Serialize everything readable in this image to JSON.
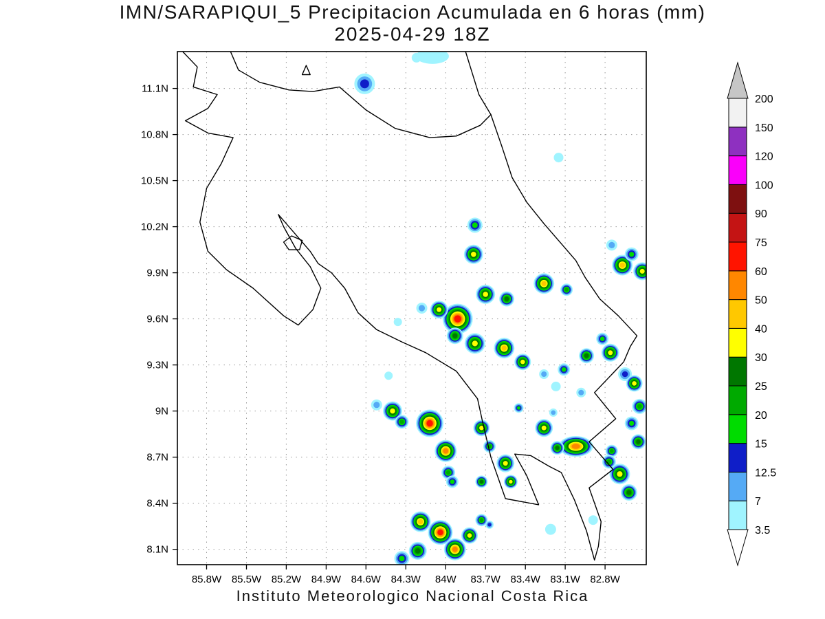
{
  "title": {
    "line1": "IMN/SARAPIQUI_5 Precipitacion Acumulada en 6 horas (mm)",
    "line2": "2025-04-29 18Z"
  },
  "footer": "Instituto Meteorologico Nacional Costa Rica",
  "chart_data": {
    "type": "heatmap",
    "title": "IMN/SARAPIQUI_5 Precipitacion Acumulada en 6 horas (mm)",
    "valid_time": "2025-04-29 18Z",
    "units": "mm",
    "extent": {
      "lon_west": 86.02,
      "lon_east": 82.49,
      "lat_north": 11.34,
      "lat_south": 8.0
    },
    "grid": {
      "lat": [
        {
          "value": 11.1,
          "label": "11.1N"
        },
        {
          "value": 10.8,
          "label": "10.8N"
        },
        {
          "value": 10.5,
          "label": "10.5N"
        },
        {
          "value": 10.2,
          "label": "10.2N"
        },
        {
          "value": 9.9,
          "label": "9.9N"
        },
        {
          "value": 9.6,
          "label": "9.6N"
        },
        {
          "value": 9.3,
          "label": "9.3N"
        },
        {
          "value": 9.0,
          "label": "9N"
        },
        {
          "value": 8.7,
          "label": "8.7N"
        },
        {
          "value": 8.4,
          "label": "8.4N"
        },
        {
          "value": 8.1,
          "label": "8.1N"
        }
      ],
      "lon": [
        {
          "value": 85.8,
          "label": "85.8W"
        },
        {
          "value": 85.5,
          "label": "85.5W"
        },
        {
          "value": 85.2,
          "label": "85.2W"
        },
        {
          "value": 84.9,
          "label": "84.9W"
        },
        {
          "value": 84.6,
          "label": "84.6W"
        },
        {
          "value": 84.3,
          "label": "84.3W"
        },
        {
          "value": 84.0,
          "label": "84W"
        },
        {
          "value": 83.7,
          "label": "83.7W"
        },
        {
          "value": 83.4,
          "label": "83.4W"
        },
        {
          "value": 83.1,
          "label": "83.1W"
        },
        {
          "value": 82.8,
          "label": "82.8W"
        }
      ]
    },
    "colorbar": {
      "levels": [
        3.5,
        7,
        12.5,
        15,
        20,
        25,
        30,
        40,
        50,
        60,
        75,
        90,
        100,
        120,
        150,
        200
      ],
      "colors": [
        "#A0F4FF",
        "#55AAF5",
        "#0F1EC8",
        "#00DC00",
        "#00AA00",
        "#007700",
        "#FFFF00",
        "#FFC800",
        "#FF8700",
        "#FF1400",
        "#C41414",
        "#7E1010",
        "#FA00FA",
        "#8E30C0",
        "#F2F2F2"
      ],
      "under_color": "#FFFFFF",
      "over_color": "#C6C6C6"
    },
    "coastlines": [
      [
        [
          85.98,
          11.34
        ],
        [
          85.87,
          11.24
        ],
        [
          85.9,
          11.11
        ],
        [
          85.72,
          11.06
        ],
        [
          85.79,
          10.97
        ],
        [
          85.96,
          10.89
        ],
        [
          85.79,
          10.81
        ],
        [
          85.6,
          10.78
        ],
        [
          85.69,
          10.61
        ],
        [
          85.8,
          10.45
        ],
        [
          85.85,
          10.23
        ],
        [
          85.79,
          10.04
        ],
        [
          85.65,
          9.92
        ],
        [
          85.45,
          9.8
        ],
        [
          85.22,
          9.62
        ],
        [
          85.11,
          9.56
        ],
        [
          85.0,
          9.66
        ],
        [
          84.94,
          9.8
        ],
        [
          85.02,
          9.94
        ],
        [
          85.13,
          10.06
        ],
        [
          85.22,
          10.2
        ],
        [
          85.26,
          10.28
        ],
        [
          85.14,
          10.16
        ],
        [
          85.02,
          10.04
        ],
        [
          84.96,
          9.96
        ],
        [
          84.86,
          9.9
        ],
        [
          84.76,
          9.8
        ],
        [
          84.66,
          9.64
        ],
        [
          84.52,
          9.53
        ],
        [
          84.33,
          9.45
        ],
        [
          84.15,
          9.38
        ],
        [
          83.92,
          9.26
        ],
        [
          83.76,
          9.08
        ],
        [
          83.72,
          8.92
        ],
        [
          83.66,
          8.7
        ],
        [
          83.55,
          8.43
        ],
        [
          83.3,
          8.39
        ],
        [
          83.39,
          8.58
        ],
        [
          83.48,
          8.72
        ],
        [
          83.36,
          8.71
        ],
        [
          83.22,
          8.64
        ],
        [
          83.13,
          8.6
        ],
        [
          83.03,
          8.42
        ],
        [
          82.94,
          8.22
        ],
        [
          82.88,
          8.03
        ],
        [
          82.85,
          8.12
        ],
        [
          82.83,
          8.28
        ],
        [
          82.92,
          8.5
        ],
        [
          82.74,
          8.62
        ],
        [
          82.92,
          8.8
        ],
        [
          82.72,
          8.95
        ],
        [
          82.88,
          9.12
        ],
        [
          82.66,
          9.32
        ],
        [
          82.61,
          9.42
        ],
        [
          82.56,
          9.49
        ],
        [
          82.7,
          9.62
        ],
        [
          82.84,
          9.73
        ],
        [
          82.95,
          9.87
        ],
        [
          83.02,
          9.98
        ],
        [
          83.12,
          10.08
        ],
        [
          83.26,
          10.22
        ],
        [
          83.39,
          10.36
        ],
        [
          83.5,
          10.52
        ],
        [
          83.58,
          10.73
        ],
        [
          83.66,
          10.93
        ],
        [
          83.75,
          11.06
        ],
        [
          83.8,
          11.2
        ],
        [
          83.85,
          11.34
        ]
      ],
      [
        [
          85.62,
          11.34
        ],
        [
          85.56,
          11.22
        ],
        [
          85.4,
          11.14
        ],
        [
          85.18,
          11.09
        ],
        [
          85.0,
          11.08
        ],
        [
          84.8,
          11.11
        ],
        [
          84.6,
          10.96
        ],
        [
          84.38,
          10.84
        ],
        [
          84.12,
          10.78
        ],
        [
          83.92,
          10.79
        ],
        [
          83.74,
          10.86
        ],
        [
          83.66,
          10.93
        ]
      ],
      [
        [
          85.08,
          11.19
        ],
        [
          85.02,
          11.19
        ],
        [
          85.05,
          11.25
        ],
        [
          85.08,
          11.19
        ]
      ],
      [
        [
          85.22,
          10.1
        ],
        [
          85.16,
          10.14
        ],
        [
          85.08,
          10.11
        ],
        [
          85.1,
          10.05
        ],
        [
          85.18,
          10.05
        ],
        [
          85.22,
          10.1
        ]
      ]
    ],
    "cells": [
      {
        "lon": 84.61,
        "lat": 11.13,
        "r": 15,
        "max": 13
      },
      {
        "lon": 84.1,
        "lat": 11.31,
        "r": 16,
        "max": 5,
        "sx": 1.5,
        "sy": 0.7
      },
      {
        "lon": 84.22,
        "lat": 11.3,
        "r": 7,
        "max": 5
      },
      {
        "lon": 83.15,
        "lat": 10.65,
        "r": 7,
        "max": 5
      },
      {
        "lon": 83.78,
        "lat": 10.21,
        "r": 11,
        "max": 18
      },
      {
        "lon": 82.67,
        "lat": 9.95,
        "r": 15,
        "max": 45
      },
      {
        "lon": 82.52,
        "lat": 9.91,
        "r": 13,
        "max": 35
      },
      {
        "lon": 82.75,
        "lat": 10.08,
        "r": 8,
        "max": 8
      },
      {
        "lon": 82.6,
        "lat": 10.02,
        "r": 10,
        "max": 18
      },
      {
        "lon": 83.79,
        "lat": 10.02,
        "r": 14,
        "max": 35
      },
      {
        "lon": 83.7,
        "lat": 9.76,
        "r": 14,
        "max": 35
      },
      {
        "lon": 83.54,
        "lat": 9.73,
        "r": 11,
        "max": 28
      },
      {
        "lon": 83.26,
        "lat": 9.83,
        "r": 15,
        "max": 45
      },
      {
        "lon": 83.09,
        "lat": 9.79,
        "r": 9,
        "max": 22
      },
      {
        "lon": 83.91,
        "lat": 9.6,
        "r": 22,
        "max": 65
      },
      {
        "lon": 84.05,
        "lat": 9.66,
        "r": 13,
        "max": 35
      },
      {
        "lon": 84.18,
        "lat": 9.67,
        "r": 8,
        "max": 10
      },
      {
        "lon": 83.93,
        "lat": 9.49,
        "r": 12,
        "max": 28
      },
      {
        "lon": 83.78,
        "lat": 9.44,
        "r": 15,
        "max": 35
      },
      {
        "lon": 83.56,
        "lat": 9.41,
        "r": 15,
        "max": 45
      },
      {
        "lon": 83.42,
        "lat": 9.32,
        "r": 12,
        "max": 35
      },
      {
        "lon": 83.26,
        "lat": 9.24,
        "r": 7,
        "max": 8
      },
      {
        "lon": 83.11,
        "lat": 9.27,
        "r": 9,
        "max": 16
      },
      {
        "lon": 82.94,
        "lat": 9.36,
        "r": 11,
        "max": 28
      },
      {
        "lon": 82.76,
        "lat": 9.38,
        "r": 13,
        "max": 35
      },
      {
        "lon": 82.82,
        "lat": 9.47,
        "r": 9,
        "max": 18
      },
      {
        "lon": 82.65,
        "lat": 9.24,
        "r": 10,
        "max": 13
      },
      {
        "lon": 82.58,
        "lat": 9.18,
        "r": 12,
        "max": 35
      },
      {
        "lon": 82.54,
        "lat": 9.03,
        "r": 11,
        "max": 22
      },
      {
        "lon": 82.6,
        "lat": 8.92,
        "r": 10,
        "max": 16
      },
      {
        "lon": 82.55,
        "lat": 8.8,
        "r": 11,
        "max": 28
      },
      {
        "lon": 82.98,
        "lat": 9.12,
        "r": 7,
        "max": 10
      },
      {
        "lon": 83.17,
        "lat": 9.16,
        "r": 7,
        "max": 5
      },
      {
        "lon": 83.45,
        "lat": 9.02,
        "r": 7,
        "max": 16
      },
      {
        "lon": 84.4,
        "lat": 9.0,
        "r": 14,
        "max": 35
      },
      {
        "lon": 84.52,
        "lat": 9.04,
        "r": 8,
        "max": 8
      },
      {
        "lon": 84.33,
        "lat": 8.93,
        "r": 10,
        "max": 22
      },
      {
        "lon": 84.12,
        "lat": 8.92,
        "r": 20,
        "max": 65
      },
      {
        "lon": 84.0,
        "lat": 8.74,
        "r": 16,
        "max": 55
      },
      {
        "lon": 83.98,
        "lat": 8.6,
        "r": 10,
        "max": 22
      },
      {
        "lon": 83.73,
        "lat": 8.89,
        "r": 12,
        "max": 35
      },
      {
        "lon": 83.67,
        "lat": 8.77,
        "r": 9,
        "max": 22
      },
      {
        "lon": 83.26,
        "lat": 8.89,
        "r": 13,
        "max": 35
      },
      {
        "lon": 83.19,
        "lat": 8.99,
        "r": 6,
        "max": 10
      },
      {
        "lon": 83.02,
        "lat": 8.77,
        "r": 20,
        "max": 55,
        "sx": 1.25,
        "sy": 0.75
      },
      {
        "lon": 83.16,
        "lat": 8.76,
        "r": 10,
        "max": 28
      },
      {
        "lon": 82.75,
        "lat": 8.74,
        "r": 9,
        "max": 22
      },
      {
        "lon": 82.69,
        "lat": 8.59,
        "r": 15,
        "max": 35
      },
      {
        "lon": 82.62,
        "lat": 8.47,
        "r": 12,
        "max": 28
      },
      {
        "lon": 82.77,
        "lat": 8.67,
        "r": 10,
        "max": 22
      },
      {
        "lon": 83.55,
        "lat": 8.66,
        "r": 13,
        "max": 35
      },
      {
        "lon": 83.51,
        "lat": 8.54,
        "r": 10,
        "max": 35
      },
      {
        "lon": 83.73,
        "lat": 8.54,
        "r": 9,
        "max": 28
      },
      {
        "lon": 83.95,
        "lat": 8.54,
        "r": 9,
        "max": 18
      },
      {
        "lon": 84.19,
        "lat": 8.28,
        "r": 15,
        "max": 45
      },
      {
        "lon": 84.04,
        "lat": 8.21,
        "r": 18,
        "max": 65
      },
      {
        "lon": 83.93,
        "lat": 8.1,
        "r": 16,
        "max": 55
      },
      {
        "lon": 83.82,
        "lat": 8.19,
        "r": 12,
        "max": 35
      },
      {
        "lon": 84.21,
        "lat": 8.09,
        "r": 13,
        "max": 28
      },
      {
        "lon": 84.33,
        "lat": 8.04,
        "r": 11,
        "max": 18
      },
      {
        "lon": 83.73,
        "lat": 8.29,
        "r": 9,
        "max": 22
      },
      {
        "lon": 83.67,
        "lat": 8.26,
        "r": 6,
        "max": 13
      },
      {
        "lon": 83.21,
        "lat": 8.23,
        "r": 8,
        "max": 5
      },
      {
        "lon": 82.89,
        "lat": 8.29,
        "r": 7,
        "max": 5
      },
      {
        "lon": 84.36,
        "lat": 9.58,
        "r": 6,
        "max": 5
      },
      {
        "lon": 84.43,
        "lat": 9.23,
        "r": 6,
        "max": 5
      }
    ]
  }
}
